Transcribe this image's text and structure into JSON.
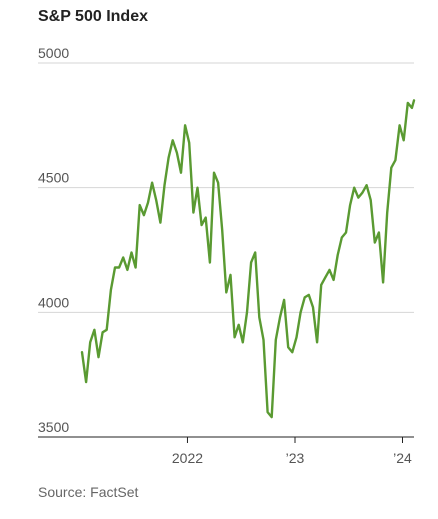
{
  "title": "S&P 500 Index",
  "source": "Source: FactSet",
  "chart_data": {
    "type": "line",
    "title": "S&P 500 Index",
    "xlabel": "",
    "ylabel": "",
    "ylim": [
      3500,
      5000
    ],
    "yticks": [
      5000,
      4500,
      4000,
      3500
    ],
    "ytick_labels": [
      "5000",
      "4500",
      "4000",
      "3500"
    ],
    "xlim": [
      "2021-01-08",
      "2024-02-09"
    ],
    "xticks": [
      "2022-01-01",
      "2023-01-01",
      "2024-01-01"
    ],
    "xtick_labels": [
      "2022",
      "’23",
      "’24"
    ],
    "grid": true,
    "color": "#5a9a32",
    "series": [
      {
        "x": [
          "2021-01-08",
          "2021-01-22",
          "2021-02-05",
          "2021-02-19",
          "2021-03-05",
          "2021-03-19",
          "2021-04-02",
          "2021-04-16",
          "2021-04-30",
          "2021-05-14",
          "2021-05-28",
          "2021-06-11",
          "2021-06-25",
          "2021-07-09",
          "2021-07-23",
          "2021-08-06",
          "2021-08-20",
          "2021-09-03",
          "2021-09-17",
          "2021-10-01",
          "2021-10-15",
          "2021-10-29",
          "2021-11-12",
          "2021-11-26",
          "2021-12-10",
          "2021-12-24",
          "2022-01-07",
          "2022-01-21",
          "2022-02-04",
          "2022-02-18",
          "2022-03-04",
          "2022-03-18",
          "2022-04-01",
          "2022-04-15",
          "2022-04-29",
          "2022-05-13",
          "2022-05-27",
          "2022-06-10",
          "2022-06-24",
          "2022-07-08",
          "2022-07-22",
          "2022-08-05",
          "2022-08-19",
          "2022-09-02",
          "2022-09-16",
          "2022-09-30",
          "2022-10-14",
          "2022-10-28",
          "2022-11-11",
          "2022-11-25",
          "2022-12-09",
          "2022-12-23",
          "2023-01-06",
          "2023-01-20",
          "2023-02-03",
          "2023-02-17",
          "2023-03-03",
          "2023-03-17",
          "2023-03-31",
          "2023-04-14",
          "2023-04-28",
          "2023-05-12",
          "2023-05-26",
          "2023-06-09",
          "2023-06-23",
          "2023-07-07",
          "2023-07-21",
          "2023-08-04",
          "2023-08-18",
          "2023-09-01",
          "2023-09-15",
          "2023-09-29",
          "2023-10-13",
          "2023-10-27",
          "2023-11-10",
          "2023-11-24",
          "2023-12-08",
          "2023-12-22",
          "2024-01-05",
          "2024-01-19",
          "2024-02-02",
          "2024-02-09"
        ],
        "values": [
          3840,
          3720,
          3880,
          3930,
          3820,
          3920,
          3930,
          4090,
          4180,
          4180,
          4220,
          4170,
          4240,
          4180,
          4430,
          4390,
          4440,
          4520,
          4450,
          4360,
          4510,
          4620,
          4690,
          4640,
          4560,
          4750,
          4680,
          4400,
          4500,
          4350,
          4380,
          4200,
          4560,
          4520,
          4330,
          4080,
          4150,
          3900,
          3950,
          3880,
          4000,
          4200,
          4240,
          3980,
          3890,
          3600,
          3580,
          3890,
          3980,
          4050,
          3860,
          3840,
          3900,
          4000,
          4060,
          4070,
          4020,
          3880,
          4110,
          4140,
          4170,
          4130,
          4230,
          4300,
          4320,
          4430,
          4500,
          4460,
          4480,
          4510,
          4450,
          4280,
          4320,
          4120,
          4400,
          4580,
          4610,
          4750,
          4690,
          4840,
          4820,
          4850
        ]
      }
    ]
  }
}
